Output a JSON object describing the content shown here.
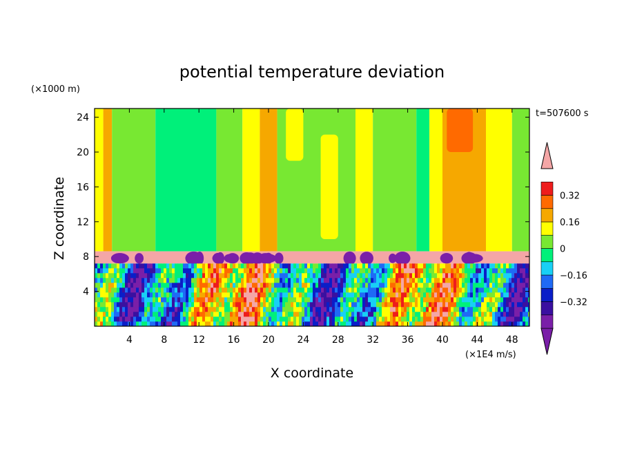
{
  "chart_data": {
    "type": "heatmap",
    "title": "potential temperature deviation",
    "xlabel": "X coordinate",
    "ylabel": "Z coordinate",
    "x_unit": "(×1E4 m/s)",
    "y_unit": "(×1000 m)",
    "time_label": "t=507600 s",
    "xlim": [
      0,
      50
    ],
    "ylim": [
      0,
      25
    ],
    "x_ticks": [
      4,
      8,
      12,
      16,
      20,
      24,
      28,
      32,
      36,
      40,
      44,
      48
    ],
    "y_ticks": [
      4,
      8,
      12,
      16,
      20,
      24
    ],
    "colorbar": {
      "levels": [
        -0.48,
        -0.4,
        -0.32,
        -0.24,
        -0.16,
        -0.08,
        0,
        0.08,
        0.16,
        0.24,
        0.32,
        0.4
      ],
      "colors": [
        "#7a1fa8",
        "#3a10a0",
        "#0a1ec8",
        "#1f6af5",
        "#18d0f5",
        "#00f07a",
        "#78e832",
        "#ffff00",
        "#f6a800",
        "#ff6a00",
        "#ee1c1c",
        "#f4a6a6"
      ],
      "tick_values": [
        0.32,
        0.16,
        0,
        -0.16,
        -0.32
      ],
      "tick_labels": [
        "0.32",
        "0.16",
        "0",
        "−0.16",
        "−0.32"
      ]
    },
    "upper_regions": [
      {
        "x": [
          0,
          1
        ],
        "level": 0.08
      },
      {
        "x": [
          1,
          2
        ],
        "level": 0.16
      },
      {
        "x": [
          2,
          7
        ],
        "level": 0.0
      },
      {
        "x": [
          7,
          14
        ],
        "level": -0.08
      },
      {
        "x": [
          14,
          17
        ],
        "level": 0.0
      },
      {
        "x": [
          17,
          19
        ],
        "level": 0.08
      },
      {
        "x": [
          19,
          21
        ],
        "level": 0.16
      },
      {
        "x": [
          21,
          30
        ],
        "level": 0.0
      },
      {
        "x": [
          30,
          32
        ],
        "level": 0.08
      },
      {
        "x": [
          32,
          37
        ],
        "level": 0.0
      },
      {
        "x": [
          37,
          38.5
        ],
        "level": -0.08
      },
      {
        "x": [
          38.5,
          40
        ],
        "level": 0.08
      },
      {
        "x": [
          40,
          45
        ],
        "level": 0.16
      },
      {
        "x": [
          45,
          48
        ],
        "level": 0.08
      },
      {
        "x": [
          48,
          50
        ],
        "level": 0.0
      }
    ],
    "upper_spots": [
      {
        "x": [
          40.5,
          43.5
        ],
        "z": [
          20,
          25
        ],
        "level": 0.24
      },
      {
        "x": [
          22,
          24
        ],
        "z": [
          19,
          25
        ],
        "level": 0.08
      },
      {
        "x": [
          26,
          28
        ],
        "z": [
          10,
          22
        ],
        "level": 0.08
      }
    ],
    "inversion_layer": {
      "z": [
        7.2,
        8.6
      ],
      "level": 0.4
    },
    "lower_layer": {
      "z": [
        0,
        7.2
      ]
    }
  }
}
